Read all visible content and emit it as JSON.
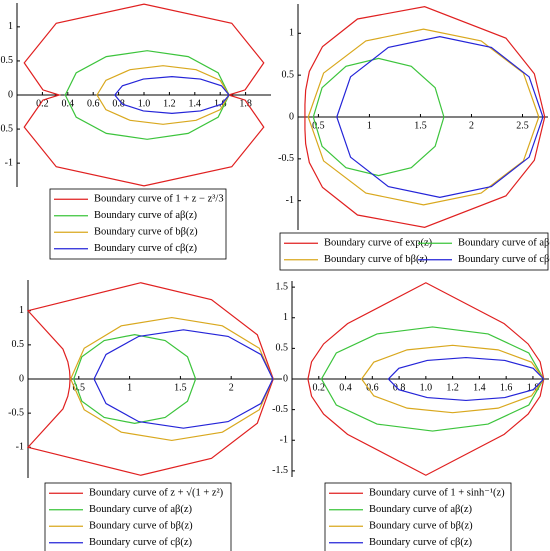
{
  "chart_data": [
    {
      "type": "line",
      "legend": "below",
      "legend_columns": 1,
      "xlim": [
        0,
        2
      ],
      "ylim": [
        -1.35,
        1.35
      ],
      "xticks": [
        0.2,
        0.4,
        0.6,
        0.8,
        {
          "value": 1,
          "label": "1.0"
        },
        1.2,
        1.4,
        1.6,
        1.8
      ],
      "yticks": [
        -1,
        -0.5,
        0,
        0.5,
        1
      ],
      "series": [
        {
          "name": "Boundary curve of 1 + z − z³/3",
          "color": "#e02020",
          "x": [
            1.667,
            1.796,
            1.943,
            1.691,
            1,
            0.309,
            0.057,
            0.204,
            0.333,
            0.204,
            0.057,
            0.309,
            1,
            1.691,
            1.943,
            1.796,
            1.667
          ],
          "values": [
            0,
            0.075,
            0.471,
            1.052,
            1.333,
            1.052,
            0.471,
            0.075,
            0,
            -0.075,
            -0.471,
            -1.052,
            -1.333,
            -1.052,
            -0.471,
            -0.075,
            0
          ]
        },
        {
          "name": "Boundary curve of aβ(z)",
          "color": "#3cc43c",
          "x": [
            1.67,
            1.584,
            1.348,
            1.025,
            0.703,
            0.466,
            0.38,
            0.466,
            0.703,
            1.025,
            1.348,
            1.584,
            1.67
          ],
          "values": [
            0,
            0.325,
            0.563,
            0.65,
            0.563,
            0.325,
            0,
            -0.325,
            -0.563,
            -0.65,
            -0.563,
            -0.325,
            0
          ]
        },
        {
          "name": "Boundary curve of bβ(z)",
          "color": "#d9a81e",
          "x": [
            1.67,
            1.6,
            1.41,
            1.15,
            0.89,
            0.7,
            0.63,
            0.7,
            0.89,
            1.15,
            1.41,
            1.6,
            1.67
          ],
          "values": [
            0,
            0.215,
            0.372,
            0.43,
            0.372,
            0.215,
            0,
            -0.215,
            -0.372,
            -0.43,
            -0.372,
            -0.215,
            0
          ]
        },
        {
          "name": "Boundary curve of cβ(z)",
          "color": "#2424d8",
          "x": [
            1.67,
            1.61,
            1.445,
            1.22,
            0.995,
            0.83,
            0.77,
            0.83,
            0.995,
            1.22,
            1.445,
            1.61,
            1.67
          ],
          "values": [
            0,
            0.135,
            0.234,
            0.27,
            0.234,
            0.135,
            0,
            -0.135,
            -0.234,
            -0.27,
            -0.234,
            -0.135,
            0
          ]
        }
      ]
    },
    {
      "type": "line",
      "legend": "below",
      "legend_columns": 2,
      "xlim": [
        0.3,
        2.75
      ],
      "ylim": [
        -1.35,
        1.35
      ],
      "xticks": [
        0.5,
        1,
        1.5,
        2,
        2.5
      ],
      "yticks": [
        -1,
        -0.5,
        0,
        0.5,
        1
      ],
      "series": [
        {
          "name": "Boundary curve of exp(z)",
          "color": "#e02020",
          "x": [
            2.718,
            2.616,
            2.338,
            1.541,
            0.883,
            0.54,
            0.411,
            0.375,
            0.368,
            0.368,
            0.368,
            0.375,
            0.411,
            0.54,
            0.883,
            1.541,
            2.338,
            2.616,
            2.718
          ],
          "values": [
            0,
            0.517,
            0.942,
            1.318,
            1.171,
            0.841,
            0.544,
            0.32,
            0.148,
            0,
            -0.148,
            -0.32,
            -0.544,
            -0.841,
            -1.171,
            -1.318,
            -0.942,
            -0.517,
            0
          ]
        },
        {
          "name": "Boundary curve of aβ(z)",
          "color": "#3cc43c",
          "x": [
            1.73,
            1.644,
            1.41,
            1.09,
            0.77,
            0.536,
            0.45,
            0.536,
            0.77,
            1.09,
            1.41,
            1.644,
            1.73
          ],
          "values": [
            0,
            0.35,
            0.606,
            0.7,
            0.606,
            0.35,
            0,
            -0.35,
            -0.606,
            -0.7,
            -0.606,
            -0.35,
            0
          ]
        },
        {
          "name": "Boundary curve of bβ(z)",
          "color": "#d9a81e",
          "x": [
            2.66,
            2.509,
            2.095,
            1.53,
            0.965,
            0.551,
            0.4,
            0.551,
            0.965,
            1.53,
            2.095,
            2.509,
            2.66
          ],
          "values": [
            0,
            0.525,
            0.909,
            1.05,
            0.909,
            0.525,
            0,
            -0.525,
            -0.909,
            -1.05,
            -0.909,
            -0.525,
            0
          ]
        },
        {
          "name": "Boundary curve of cβ(z)",
          "color": "#2424d8",
          "x": [
            2.7,
            2.565,
            2.195,
            1.69,
            1.185,
            0.815,
            0.68,
            0.815,
            1.185,
            1.69,
            2.195,
            2.565,
            2.7
          ],
          "values": [
            0,
            0.48,
            0.831,
            0.96,
            0.831,
            0.48,
            0,
            -0.48,
            -0.831,
            -0.96,
            -0.831,
            -0.48,
            0
          ]
        }
      ]
    },
    {
      "type": "line",
      "legend": "below",
      "legend_columns": 1,
      "xlim": [
        0,
        2.5
      ],
      "ylim": [
        -1.45,
        1.45
      ],
      "xticks": [
        0.5,
        1,
        1.5,
        2
      ],
      "yticks": [
        -1,
        -0.5,
        0,
        0.5,
        1
      ],
      "series": [
        {
          "name": "Boundary curve of z + √(1 + z²)",
          "color": "#e02020",
          "x": [
            2.414,
            2.257,
            1.806,
            1.11,
            0,
            0.344,
            0.392,
            0.409,
            0.414,
            0.409,
            0.392,
            0.344,
            0,
            1.11,
            1.806,
            2.257,
            2.414
          ],
          "values": [
            0,
            0.648,
            1.162,
            1.41,
            1,
            0.438,
            0.252,
            0.118,
            0,
            -0.118,
            -0.252,
            -0.438,
            -1,
            -1.41,
            -1.162,
            -0.648,
            0
          ]
        },
        {
          "name": "Boundary curve of aβ(z)",
          "color": "#3cc43c",
          "x": [
            1.65,
            1.57,
            1.35,
            1.05,
            0.75,
            0.53,
            0.45,
            0.53,
            0.75,
            1.05,
            1.35,
            1.57,
            1.65
          ],
          "values": [
            0,
            0.325,
            0.563,
            0.65,
            0.563,
            0.325,
            0,
            -0.325,
            -0.563,
            -0.65,
            -0.563,
            -0.325,
            0
          ]
        },
        {
          "name": "Boundary curve of bβ(z)",
          "color": "#d9a81e",
          "x": [
            2.41,
            2.277,
            1.913,
            1.415,
            0.918,
            0.553,
            0.42,
            0.553,
            0.918,
            1.415,
            1.913,
            2.277,
            2.41
          ],
          "values": [
            0,
            0.45,
            0.779,
            0.9,
            0.779,
            0.45,
            0,
            -0.45,
            -0.779,
            -0.9,
            -0.779,
            -0.45,
            0
          ]
        },
        {
          "name": "Boundary curve of cβ(z)",
          "color": "#2424d8",
          "x": [
            2.41,
            2.292,
            1.97,
            1.53,
            1.09,
            0.768,
            0.65,
            0.768,
            1.09,
            1.53,
            1.97,
            2.292,
            2.41
          ],
          "values": [
            0,
            0.36,
            0.624,
            0.72,
            0.624,
            0.36,
            0,
            -0.36,
            -0.624,
            -0.72,
            -0.624,
            -0.36,
            0
          ]
        }
      ]
    },
    {
      "type": "line",
      "legend": "below",
      "legend_columns": 1,
      "xlim": [
        0,
        1.92
      ],
      "ylim": [
        -1.6,
        1.6
      ],
      "xticks": [
        0.2,
        0.4,
        0.6,
        0.8,
        {
          "value": 1,
          "label": "1.0"
        },
        1.2,
        1.4,
        1.6,
        1.8
      ],
      "yticks": [
        -1.5,
        -1,
        -0.5,
        0,
        0.5,
        1,
        1.5
      ],
      "series": [
        {
          "name": "Boundary curve of 1 + sinh⁻¹(z)",
          "color": "#e02020",
          "x": [
            1.881,
            1.854,
            1.764,
            1.585,
            1,
            0.415,
            0.236,
            0.146,
            0.119,
            0.146,
            0.236,
            0.415,
            1,
            1.585,
            1.764,
            1.854,
            1.881
          ],
          "values": [
            0,
            0.28,
            0.572,
            0.904,
            1.571,
            0.904,
            0.572,
            0.28,
            0,
            -0.28,
            -0.572,
            -0.904,
            -1.571,
            -0.904,
            -0.572,
            -0.28,
            0
          ]
        },
        {
          "name": "Boundary curve of aβ(z)",
          "color": "#3cc43c",
          "x": [
            1.88,
            1.769,
            1.465,
            1.05,
            0.635,
            0.331,
            0.22,
            0.331,
            0.635,
            1.05,
            1.465,
            1.769,
            1.88
          ],
          "values": [
            0,
            0.425,
            0.736,
            0.85,
            0.736,
            0.425,
            0,
            -0.425,
            -0.736,
            -0.85,
            -0.736,
            -0.425,
            0
          ]
        },
        {
          "name": "Boundary curve of bβ(z)",
          "color": "#d9a81e",
          "x": [
            1.88,
            1.789,
            1.54,
            1.2,
            0.86,
            0.611,
            0.52,
            0.611,
            0.86,
            1.2,
            1.54,
            1.789,
            1.88
          ],
          "values": [
            0,
            0.275,
            0.476,
            0.55,
            0.476,
            0.275,
            0,
            -0.275,
            -0.476,
            -0.55,
            -0.476,
            -0.275,
            0
          ]
        },
        {
          "name": "Boundary curve of cβ(z)",
          "color": "#2424d8",
          "x": [
            1.88,
            1.802,
            1.59,
            1.3,
            1.01,
            0.798,
            0.72,
            0.798,
            1.01,
            1.3,
            1.59,
            1.802,
            1.88
          ],
          "values": [
            0,
            0.175,
            0.303,
            0.35,
            0.303,
            0.175,
            0,
            -0.175,
            -0.303,
            -0.35,
            -0.303,
            -0.175,
            0
          ]
        }
      ]
    }
  ]
}
